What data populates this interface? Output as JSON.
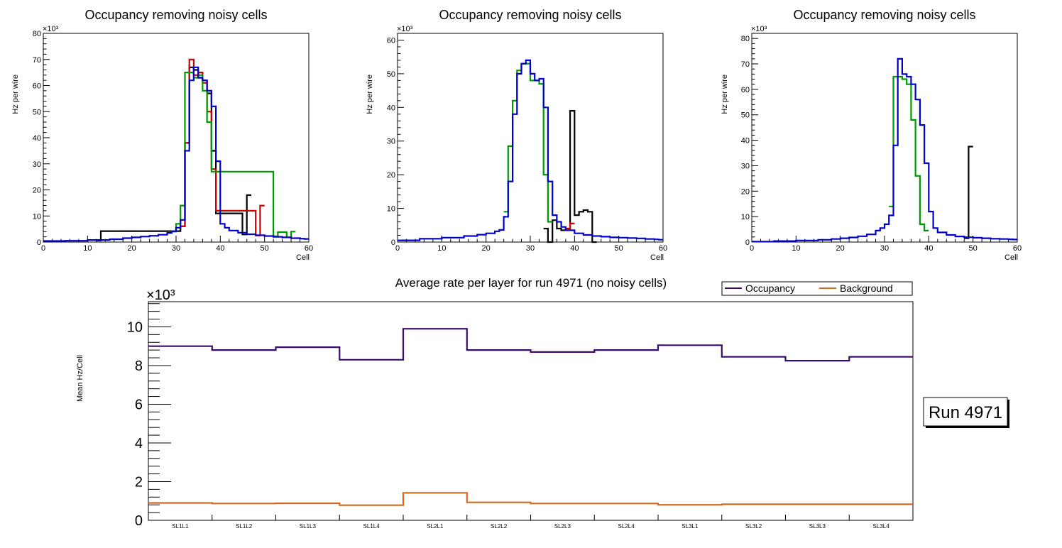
{
  "colors": {
    "black": "#000000",
    "red": "#cc0000",
    "green": "#009900",
    "blue": "#0000cc",
    "occupancy": "#3a0a6e",
    "background": "#d2691e"
  },
  "chart_data": [
    {
      "type": "line",
      "title": "Occupancy removing noisy cells",
      "xlabel": "Cell",
      "ylabel": "Hz per wire",
      "exponent": "×10³",
      "xlim": [
        0,
        60
      ],
      "ylim": [
        0,
        80
      ],
      "xticks": [
        "0",
        "10",
        "20",
        "30",
        "40",
        "50",
        "60"
      ],
      "yticks": [
        "0",
        "10",
        "20",
        "30",
        "40",
        "50",
        "60",
        "70",
        "80"
      ],
      "series": [
        {
          "name": "black",
          "color": "#000000",
          "x": [
            12,
            13,
            31,
            32,
            33,
            34,
            35,
            36,
            37,
            38,
            39,
            45,
            46
          ],
          "y": [
            0.6,
            4.2,
            6,
            38,
            67,
            66,
            63,
            62,
            57,
            35,
            11,
            2.9,
            18
          ]
        },
        {
          "name": "red",
          "color": "#cc0000",
          "x": [
            31,
            32,
            33,
            34,
            35,
            36,
            37,
            38,
            39,
            48,
            49
          ],
          "y": [
            6,
            38,
            70,
            64,
            65,
            61,
            50,
            28,
            12,
            2.5,
            14
          ]
        },
        {
          "name": "green",
          "color": "#009900",
          "x": [
            29,
            30,
            31,
            32,
            33,
            34,
            35,
            36,
            37,
            38,
            52,
            53,
            55,
            56
          ],
          "y": [
            4,
            7,
            14,
            65,
            65,
            63,
            64,
            58,
            46,
            27,
            2.2,
            3.8,
            1.8,
            4
          ]
        },
        {
          "name": "blue",
          "color": "#0000cc",
          "x": [
            0,
            5,
            10,
            15,
            18,
            20,
            22,
            24,
            26,
            28,
            29,
            30,
            31,
            32,
            33,
            34,
            35,
            36,
            37,
            38,
            39,
            40,
            41,
            42,
            44,
            46,
            48,
            50,
            52,
            54,
            56,
            58,
            59
          ],
          "y": [
            0.4,
            0.5,
            0.8,
            1.1,
            1.5,
            1.8,
            2.1,
            2.4,
            2.8,
            3.5,
            4.2,
            5.5,
            8.5,
            35,
            62,
            67,
            63,
            62,
            58,
            52,
            31,
            7,
            5.5,
            4.4,
            3.6,
            3.0,
            2.6,
            2.3,
            2.0,
            1.8,
            1.5,
            1.3,
            1.2
          ]
        }
      ]
    },
    {
      "type": "line",
      "title": "Occupancy removing noisy cells",
      "xlabel": "Cell",
      "ylabel": "Hz per wire",
      "exponent": "×10³",
      "xlim": [
        0,
        60
      ],
      "ylim": [
        0,
        62
      ],
      "xticks": [
        "0",
        "10",
        "20",
        "30",
        "40",
        "50",
        "60"
      ],
      "yticks": [
        "0",
        "10",
        "20",
        "30",
        "40",
        "50",
        "60"
      ],
      "series": [
        {
          "name": "black",
          "color": "#000000",
          "x": [
            33,
            34,
            35,
            36,
            37,
            38,
            39,
            40,
            41,
            42,
            43,
            44
          ],
          "y": [
            4,
            0,
            6.5,
            4,
            3.5,
            4,
            39,
            8,
            9,
            9.5,
            9,
            0
          ]
        },
        {
          "name": "red",
          "color": "#cc0000",
          "x": [
            38,
            39
          ],
          "y": [
            4,
            5.5
          ]
        },
        {
          "name": "green",
          "color": "#009900",
          "x": [
            24,
            25,
            26,
            27,
            28,
            29,
            30,
            31,
            32,
            33,
            34
          ],
          "y": [
            9,
            28.5,
            42,
            51,
            53,
            53,
            48,
            48,
            47,
            20,
            6
          ]
        },
        {
          "name": "blue",
          "color": "#0000cc",
          "x": [
            0,
            5,
            10,
            15,
            18,
            20,
            22,
            23,
            24,
            25,
            26,
            27,
            28,
            29,
            30,
            31,
            32,
            33,
            34,
            35,
            36,
            37,
            38,
            40,
            42,
            44,
            46,
            48,
            50,
            52,
            54,
            56,
            58,
            59
          ],
          "y": [
            0.5,
            1,
            1.3,
            1.8,
            2.2,
            2.6,
            3.2,
            3.6,
            7.5,
            18,
            38,
            50,
            53,
            54,
            50,
            48,
            48.5,
            40,
            18,
            8,
            6,
            4.5,
            3.5,
            2.6,
            2.1,
            1.8,
            1.6,
            1.4,
            1.3,
            1.2,
            1.1,
            0.9,
            0.8,
            0.7
          ]
        }
      ]
    },
    {
      "type": "line",
      "title": "Occupancy removing noisy cells",
      "xlabel": "Cell",
      "ylabel": "Hz per wire",
      "exponent": "×10³",
      "xlim": [
        0,
        60
      ],
      "ylim": [
        0,
        82
      ],
      "xticks": [
        "0",
        "10",
        "20",
        "30",
        "40",
        "50",
        "60"
      ],
      "yticks": [
        "0",
        "10",
        "20",
        "30",
        "40",
        "50",
        "60",
        "70",
        "80"
      ],
      "series": [
        {
          "name": "black",
          "color": "#000000",
          "x": [
            48,
            49
          ],
          "y": [
            1.5,
            37.5
          ]
        },
        {
          "name": "green",
          "color": "#009900",
          "x": [
            31,
            32,
            33,
            34,
            35,
            36,
            37,
            38,
            39
          ],
          "y": [
            14,
            65,
            65,
            64,
            62,
            48,
            26,
            7,
            4.5
          ]
        },
        {
          "name": "blue",
          "color": "#0000cc",
          "x": [
            0,
            5,
            10,
            15,
            18,
            20,
            22,
            24,
            26,
            28,
            29,
            30,
            31,
            32,
            33,
            34,
            35,
            36,
            37,
            38,
            39,
            40,
            41,
            42,
            44,
            46,
            48,
            50,
            52,
            54,
            56,
            58,
            59
          ],
          "y": [
            0.2,
            0.4,
            0.6,
            0.9,
            1.2,
            1.5,
            1.8,
            2.3,
            3,
            4.5,
            5.5,
            7,
            10.5,
            38,
            72,
            66,
            65,
            62,
            56,
            46,
            31,
            12,
            5.5,
            3.8,
            2.8,
            2.2,
            1.9,
            1.7,
            1.5,
            1.3,
            1.2,
            1.1,
            1.0
          ]
        }
      ]
    },
    {
      "type": "line",
      "title": "Average rate per layer for run 4971 (no noisy cells)",
      "ylabel": "Mean Hz/Cell",
      "exponent": "×10³",
      "ylim": [
        0,
        11.3
      ],
      "yticks": [
        "0",
        "2",
        "4",
        "6",
        "8",
        "10"
      ],
      "categories": [
        "SL1L1",
        "SL1L2",
        "SL1L3",
        "SL1L4",
        "SL2L1",
        "SL2L2",
        "SL2L3",
        "SL2L4",
        "SL3L1",
        "SL3L2",
        "SL3L3",
        "SL3L4"
      ],
      "series": [
        {
          "name": "Occupancy",
          "color": "#3a0a6e",
          "values": [
            9.0,
            8.8,
            8.95,
            8.3,
            9.9,
            8.8,
            8.7,
            8.8,
            9.05,
            8.45,
            8.25,
            8.45
          ]
        },
        {
          "name": "Background",
          "color": "#d2691e",
          "values": [
            0.9,
            0.87,
            0.88,
            0.78,
            1.42,
            0.93,
            0.87,
            0.87,
            0.8,
            0.83,
            0.83,
            0.83
          ]
        }
      ],
      "legend": {
        "occupancy": "Occupancy",
        "background": "Background"
      },
      "annotation": "Run 4971"
    }
  ]
}
